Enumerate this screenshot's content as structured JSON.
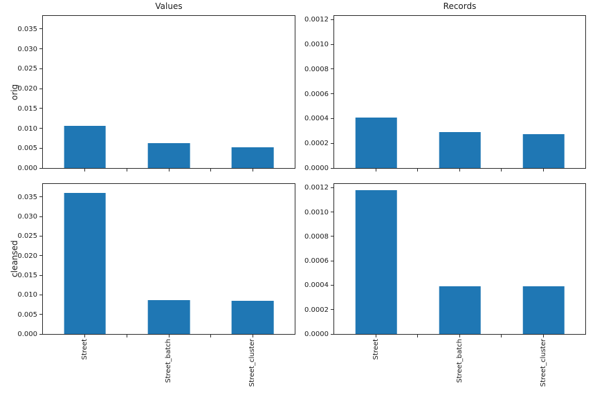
{
  "figure": {
    "background_color": "#ffffff",
    "rows": [
      "orig",
      "cleansed"
    ],
    "columns": [
      "Values",
      "Records"
    ]
  },
  "colors": {
    "bar": "#1f77b4",
    "text": "#1a1a1a",
    "spine": "#2b2b2b"
  },
  "chart_data": [
    {
      "type": "bar",
      "title": "Values",
      "ylabel": "orig",
      "xlabel": "",
      "categories": [
        "Street",
        "Street_batch",
        "Street_cluster"
      ],
      "values": [
        0.0106,
        0.0062,
        0.0053
      ],
      "ytick_labels": [
        "0.000",
        "0.005",
        "0.010",
        "0.015",
        "0.020",
        "0.025",
        "0.030",
        "0.035"
      ],
      "ylim": [
        0,
        0.0383
      ],
      "xtick_labels_visible": false,
      "grid": false,
      "legend": "none"
    },
    {
      "type": "bar",
      "title": "Records",
      "ylabel": "",
      "xlabel": "",
      "categories": [
        "Street",
        "Street_batch",
        "Street_cluster"
      ],
      "values": [
        0.00041,
        0.00029,
        0.000276
      ],
      "ytick_labels": [
        "0.0000",
        "0.0002",
        "0.0004",
        "0.0006",
        "0.0008",
        "0.0010",
        "0.0012"
      ],
      "ylim": [
        0,
        0.00123
      ],
      "xtick_labels_visible": false,
      "grid": false,
      "legend": "none"
    },
    {
      "type": "bar",
      "title": "",
      "ylabel": "cleansed",
      "xlabel": "",
      "categories": [
        "Street",
        "Street_batch",
        "Street_cluster"
      ],
      "values": [
        0.036,
        0.0087,
        0.0085
      ],
      "ytick_labels": [
        "0.000",
        "0.005",
        "0.010",
        "0.015",
        "0.020",
        "0.025",
        "0.030",
        "0.035"
      ],
      "ylim": [
        0,
        0.0383
      ],
      "xtick_labels_visible": true,
      "grid": false,
      "legend": "none"
    },
    {
      "type": "bar",
      "title": "",
      "ylabel": "",
      "xlabel": "",
      "categories": [
        "Street",
        "Street_batch",
        "Street_cluster"
      ],
      "values": [
        0.00118,
        0.00039,
        0.00039
      ],
      "ytick_labels": [
        "0.0000",
        "0.0002",
        "0.0004",
        "0.0006",
        "0.0008",
        "0.0010",
        "0.0012"
      ],
      "ylim": [
        0,
        0.00123
      ],
      "xtick_labels_visible": true,
      "grid": false,
      "legend": "none"
    }
  ]
}
